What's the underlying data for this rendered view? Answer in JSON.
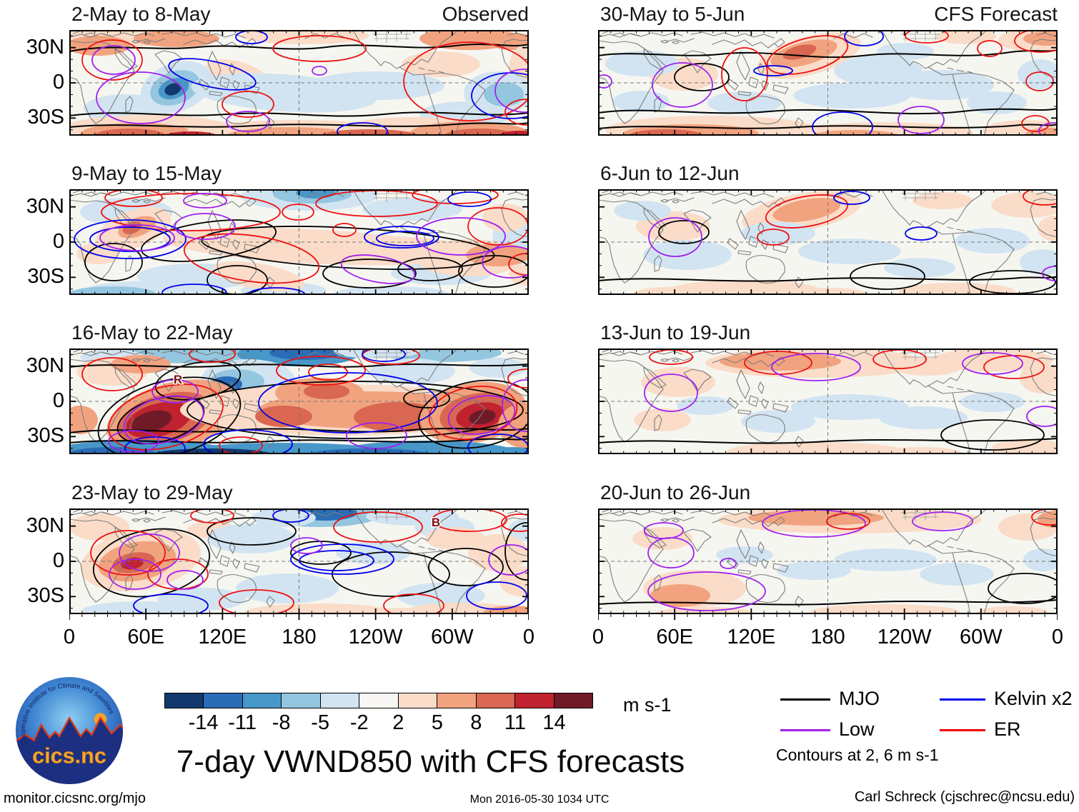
{
  "figure": {
    "title": "7-day VWND850 with CFS forecasts",
    "column_labels": {
      "left": "Observed",
      "right": "CFS Forecast"
    },
    "panels": {
      "rows": [
        {
          "left": {
            "title": "2-May to 8-May"
          },
          "right": {
            "title": "30-May to 5-Jun"
          }
        },
        {
          "left": {
            "title": "9-May to 15-May"
          },
          "right": {
            "title": "6-Jun to 12-Jun"
          }
        },
        {
          "left": {
            "title": "16-May to 22-May"
          },
          "right": {
            "title": "13-Jun to 19-Jun"
          }
        },
        {
          "left": {
            "title": "23-May to 29-May"
          },
          "right": {
            "title": "20-Jun to 26-Jun"
          }
        }
      ]
    },
    "axes": {
      "y_tick_labels": [
        "30N",
        "0",
        "30S"
      ],
      "x_tick_labels": [
        "0",
        "60E",
        "120E",
        "180",
        "120W",
        "60W",
        "0"
      ]
    },
    "colorbar": {
      "units": "m s-1",
      "tick_labels": [
        "-14",
        "-11",
        "-8",
        "-5",
        "-2",
        "2",
        "5",
        "8",
        "11",
        "14"
      ],
      "colors": [
        "#12386d",
        "#2a6cb5",
        "#4897c9",
        "#94c6df",
        "#d2e4f1",
        "#f7f6f3",
        "#fadcc8",
        "#f1a37f",
        "#d96751",
        "#c0222f",
        "#701a28"
      ]
    },
    "legend": {
      "items": [
        {
          "label": "MJO",
          "color": "#000000"
        },
        {
          "label": "Kelvin x2",
          "color": "#0000ee"
        },
        {
          "label": "Low",
          "color": "#a020f0"
        },
        {
          "label": "ER",
          "color": "#ee0000"
        }
      ],
      "note": "Contours at 2, 6 m s-1"
    },
    "storm_markers": [
      {
        "panel": "obs3",
        "letter": "R"
      },
      {
        "panel": "obs4",
        "letter": "B"
      }
    ]
  },
  "logo": {
    "name": "cics.nc",
    "ring_text": "Cooperative Institute for Climate and Satellites"
  },
  "footer": {
    "left": "monitor.cicsnc.org/mjo",
    "center": "Mon 2016-05-30 1034 UTC",
    "right": "Carl Schreck (cjschrec@ncsu.edu)"
  }
}
